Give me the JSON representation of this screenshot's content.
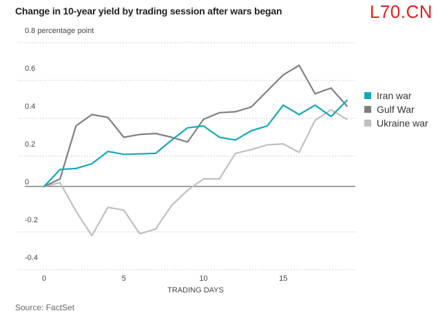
{
  "watermark": "L70.CN",
  "source": "Source: FactSet",
  "colors": {
    "iran": "#13a6b8",
    "gulf": "#7f7f7f",
    "ukraine": "#bfbfbf",
    "grid": "#cccccc",
    "zero": "#666666"
  },
  "chart_data": {
    "type": "line",
    "title": "Change in 10-year yield by trading session after wars began",
    "xlabel": "TRADING DAYS",
    "ylabel": "percentage point",
    "xlim": [
      0,
      19
    ],
    "ylim": [
      -0.4,
      0.8
    ],
    "x_ticks": [
      "0",
      "5",
      "10",
      "15"
    ],
    "y_ticks": [
      "0.8 percentage point",
      "0.6",
      "0.4",
      "0.2",
      "0",
      "-0.2",
      "-0.4"
    ],
    "grid": "horizontal",
    "legend_position": "right",
    "x": [
      0,
      1,
      2,
      3,
      4,
      5,
      6,
      7,
      8,
      9,
      10,
      11,
      12,
      13,
      14,
      15,
      16,
      17,
      18,
      19
    ],
    "series": [
      {
        "name": "Iran war",
        "color": "#13a6b8",
        "values": [
          0,
          0.09,
          0.095,
          0.12,
          0.185,
          0.17,
          0.172,
          0.175,
          0.245,
          0.31,
          0.32,
          0.26,
          0.245,
          0.295,
          0.32,
          0.43,
          0.38,
          0.43,
          0.37,
          0.455
        ]
      },
      {
        "name": "Gulf War",
        "color": "#7f7f7f",
        "values": [
          0,
          0.04,
          0.32,
          0.38,
          0.365,
          0.26,
          0.275,
          0.28,
          0.26,
          0.235,
          0.355,
          0.39,
          0.395,
          0.42,
          0.505,
          0.59,
          0.64,
          0.49,
          0.52,
          0.425
        ]
      },
      {
        "name": "Ukraine war",
        "color": "#bfbfbf",
        "values": [
          0,
          0.02,
          -0.13,
          -0.26,
          -0.11,
          -0.125,
          -0.25,
          -0.225,
          -0.1,
          -0.02,
          0.04,
          0.04,
          0.175,
          0.195,
          0.22,
          0.225,
          0.18,
          0.35,
          0.405,
          0.355
        ]
      }
    ]
  }
}
